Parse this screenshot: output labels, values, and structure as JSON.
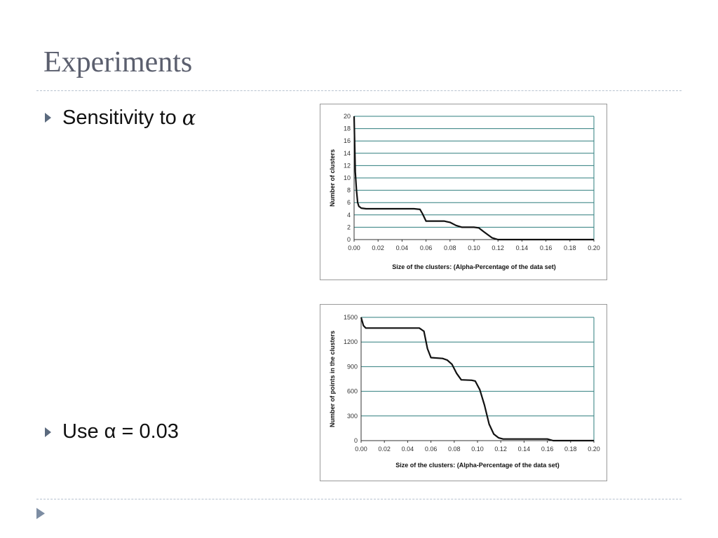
{
  "slide": {
    "title": "Experiments",
    "bullets": [
      {
        "text": "Sensitivity to ",
        "symbol": "α"
      },
      {
        "text": "Use α = 0.03",
        "symbol": ""
      }
    ]
  },
  "colors": {
    "title": "#5b5f6e",
    "bullet_marker": "#5b6a7e",
    "gridline": "#2e7d7d",
    "curve": "#111111",
    "nav_arrow": "#7d8da3"
  },
  "icons": {
    "bullet": "triangle-right-icon",
    "nav": "triangle-right-icon"
  },
  "chart_data": [
    {
      "type": "line",
      "title": "",
      "xlabel": "Size of the clusters: (Alpha-Percentage of the data set)",
      "ylabel": "Number of clusters",
      "xlim": [
        0,
        0.2
      ],
      "ylim": [
        0,
        20
      ],
      "xticks": [
        "0.00",
        "0.02",
        "0.04",
        "0.06",
        "0.08",
        "0.10",
        "0.12",
        "0.14",
        "0.16",
        "0.18",
        "0.20"
      ],
      "yticks": [
        "0",
        "2",
        "4",
        "6",
        "8",
        "10",
        "12",
        "14",
        "16",
        "18",
        "20"
      ],
      "grid": true,
      "series": [
        {
          "x": [
            0.0,
            0.001,
            0.002,
            0.003,
            0.004,
            0.006,
            0.01,
            0.03,
            0.05,
            0.055,
            0.057,
            0.06,
            0.075,
            0.08,
            0.085,
            0.09,
            0.1,
            0.104,
            0.108,
            0.115,
            0.12,
            0.2
          ],
          "y": [
            20,
            11,
            8,
            6,
            5.4,
            5.1,
            5,
            5,
            5,
            4.9,
            4.2,
            3,
            3,
            2.8,
            2.3,
            2,
            2,
            1.9,
            1.3,
            0.3,
            0,
            0
          ]
        }
      ]
    },
    {
      "type": "line",
      "title": "",
      "xlabel": "Size of the clusters: (Alpha-Percentage of the data set)",
      "ylabel": "Number of points in the clusters",
      "xlim": [
        0,
        0.2
      ],
      "ylim": [
        0,
        1500
      ],
      "xticks": [
        "0.00",
        "0.02",
        "0.04",
        "0.06",
        "0.08",
        "0.10",
        "0.12",
        "0.14",
        "0.16",
        "0.18",
        "0.20"
      ],
      "yticks": [
        "0",
        "300",
        "600",
        "900",
        "1200",
        "1500"
      ],
      "grid": true,
      "series": [
        {
          "x": [
            0.0,
            0.002,
            0.004,
            0.01,
            0.03,
            0.05,
            0.054,
            0.057,
            0.06,
            0.07,
            0.074,
            0.078,
            0.082,
            0.086,
            0.095,
            0.098,
            0.102,
            0.106,
            0.11,
            0.114,
            0.118,
            0.122,
            0.13,
            0.16,
            0.165,
            0.2
          ],
          "y": [
            1500,
            1400,
            1370,
            1370,
            1370,
            1370,
            1330,
            1120,
            1010,
            1000,
            980,
            930,
            820,
            740,
            735,
            725,
            620,
            430,
            200,
            80,
            35,
            20,
            20,
            20,
            0,
            0
          ]
        }
      ]
    }
  ]
}
